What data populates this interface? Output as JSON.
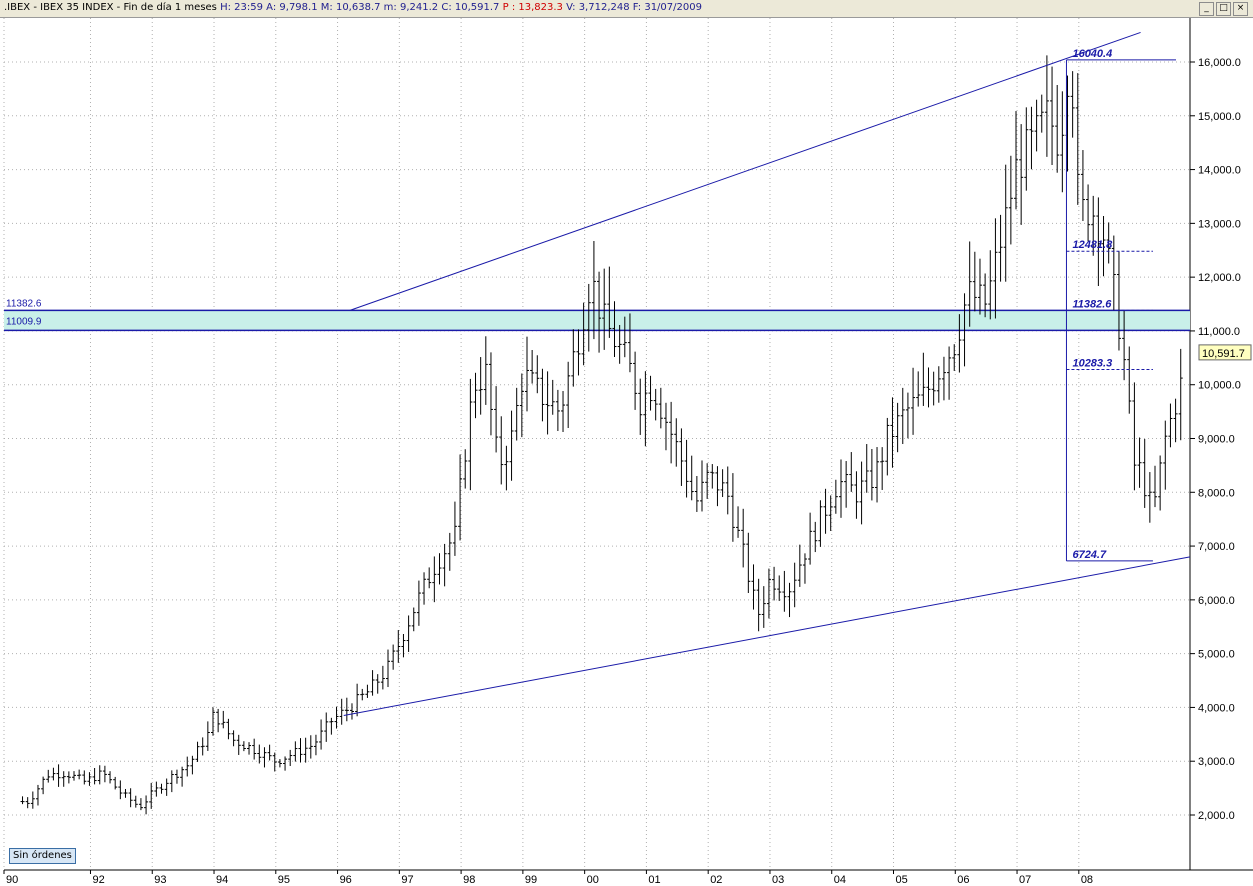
{
  "window": {
    "title": {
      "symbol": ".IBEX - IBEX 35 INDEX - Fin de día 1 meses",
      "h_label": "H:",
      "h_value": "23:59",
      "a_label": "A:",
      "a_value": "9,798.1",
      "m_label": "M:",
      "m_value": "10,638.7",
      "mm_label": "m:",
      "mm_value": "9,241.2",
      "c_label": "C:",
      "c_value": "10,591.7",
      "p_label": "P :",
      "p_value": "13,823.3",
      "v_label": "V:",
      "v_value": "3,712,248",
      "f_label": "F:",
      "f_value": "31/07/2009"
    },
    "buttons": {
      "min": "_",
      "max": "□",
      "close": "×"
    }
  },
  "orders_label": "Sin órdenes",
  "colors": {
    "price_bars": "#000000",
    "drawings": "#1a1aa8",
    "zone_fill": "#c9f0e9",
    "grid": "#b0b0b0",
    "last_price_box": "#ffffc0"
  },
  "chart_data": {
    "type": "ohlc-bar",
    "interval": "1 month",
    "y_axis_side": "right",
    "ylim": [
      1200,
      16650
    ],
    "y_ticks": [
      2000,
      3000,
      4000,
      5000,
      6000,
      7000,
      8000,
      9000,
      10000,
      11000,
      12000,
      13000,
      14000,
      15000,
      16000
    ],
    "y_tick_labels": [
      "2,000.0",
      "3,000.0",
      "4,000.0",
      "5,000.0",
      "6,000.0",
      "7,000.0",
      "8,000.0",
      "9,000.0",
      "10,000.0",
      "11,000.0",
      "12,000.0",
      "13,000.0",
      "14,000.0",
      "15,000.0",
      "16,000.0"
    ],
    "x_tick_labels": [
      "90",
      "92",
      "93",
      "94",
      "95",
      "96",
      "97",
      "98",
      "99",
      "00",
      "01",
      "02",
      "03",
      "04",
      "05",
      "06",
      "07",
      "08"
    ],
    "x_tick_years": [
      1990.6,
      1992,
      1993,
      1994,
      1995,
      1996,
      1997,
      1998,
      1999,
      2000,
      2001,
      2002,
      2003,
      2004,
      2005,
      2006,
      2007,
      2008
    ],
    "x_range_years": [
      1990.6,
      2009.8
    ],
    "grid": true,
    "last_price": "10,591.7",
    "last_price_value": 10591.7,
    "series_monthly_closes": [
      [
        1991.0,
        2250
      ],
      [
        1991.3,
        2750
      ],
      [
        1991.6,
        2780
      ],
      [
        1991.9,
        2620
      ],
      [
        1992.2,
        2780
      ],
      [
        1992.5,
        2400
      ],
      [
        1992.8,
        2150
      ],
      [
        1993.0,
        2400
      ],
      [
        1993.3,
        2700
      ],
      [
        1993.6,
        2950
      ],
      [
        1993.9,
        3500
      ],
      [
        1994.0,
        3900
      ],
      [
        1994.3,
        3400
      ],
      [
        1994.6,
        3250
      ],
      [
        1995.0,
        3000
      ],
      [
        1995.3,
        3150
      ],
      [
        1995.6,
        3300
      ],
      [
        1995.9,
        3750
      ],
      [
        1996.2,
        4000
      ],
      [
        1996.5,
        4300
      ],
      [
        1996.8,
        4700
      ],
      [
        1997.0,
        5200
      ],
      [
        1997.3,
        6000
      ],
      [
        1997.6,
        6700
      ],
      [
        1997.9,
        7200
      ],
      [
        1998.0,
        8200
      ],
      [
        1998.2,
        10000
      ],
      [
        1998.4,
        10200
      ],
      [
        1998.6,
        8500
      ],
      [
        1998.8,
        8900
      ],
      [
        1999.0,
        10200
      ],
      [
        1999.3,
        9800
      ],
      [
        1999.6,
        9500
      ],
      [
        1999.9,
        10900
      ],
      [
        2000.1,
        12000
      ],
      [
        2000.3,
        11200
      ],
      [
        2000.5,
        10800
      ],
      [
        2000.7,
        10400
      ],
      [
        2000.9,
        9700
      ],
      [
        2001.1,
        10000
      ],
      [
        2001.3,
        9400
      ],
      [
        2001.6,
        8500
      ],
      [
        2001.8,
        7800
      ],
      [
        2002.0,
        8300
      ],
      [
        2002.3,
        8000
      ],
      [
        2002.6,
        6700
      ],
      [
        2002.8,
        5700
      ],
      [
        2003.0,
        6400
      ],
      [
        2003.3,
        6200
      ],
      [
        2003.6,
        7000
      ],
      [
        2003.9,
        7700
      ],
      [
        2004.1,
        8200
      ],
      [
        2004.4,
        8000
      ],
      [
        2004.7,
        8300
      ],
      [
        2004.9,
        9000
      ],
      [
        2005.2,
        9500
      ],
      [
        2005.5,
        9800
      ],
      [
        2005.8,
        10400
      ],
      [
        2006.0,
        10800
      ],
      [
        2006.2,
        11700
      ],
      [
        2006.5,
        11500
      ],
      [
        2006.8,
        13000
      ],
      [
        2007.0,
        14100
      ],
      [
        2007.2,
        14400
      ],
      [
        2007.5,
        15000
      ],
      [
        2007.7,
        14500
      ],
      [
        2007.8,
        15900
      ],
      [
        2007.9,
        15500
      ],
      [
        2008.0,
        13200
      ],
      [
        2008.2,
        13300
      ],
      [
        2008.4,
        12800
      ],
      [
        2008.6,
        11500
      ],
      [
        2008.7,
        10800
      ],
      [
        2008.9,
        8500
      ],
      [
        2009.0,
        8400
      ],
      [
        2009.2,
        7600
      ],
      [
        2009.4,
        9000
      ],
      [
        2009.6,
        9800
      ],
      [
        2009.8,
        10591.7
      ]
    ],
    "horizontal_zone": {
      "top": 11382.6,
      "bottom": 11009.9,
      "top_label": "11382.6",
      "bottom_label": "11009.9"
    },
    "trendlines": [
      {
        "name": "upper",
        "from": [
          1996.2,
          11382.6
        ],
        "to": [
          2009.0,
          16550
        ]
      },
      {
        "name": "lower",
        "from": [
          1996.1,
          3850
        ],
        "to": [
          2009.8,
          6800
        ]
      }
    ],
    "fibonacci_box": {
      "x_from": 2007.8,
      "x_to": 2009.2,
      "levels": [
        {
          "value": 16040.4,
          "label": "16040.4"
        },
        {
          "value": 12481.8,
          "label": "12481.8"
        },
        {
          "value": 11382.6,
          "label": "11382.6"
        },
        {
          "value": 10283.3,
          "label": "10283.3"
        },
        {
          "value": 6724.7,
          "label": "6724.7"
        }
      ]
    }
  }
}
